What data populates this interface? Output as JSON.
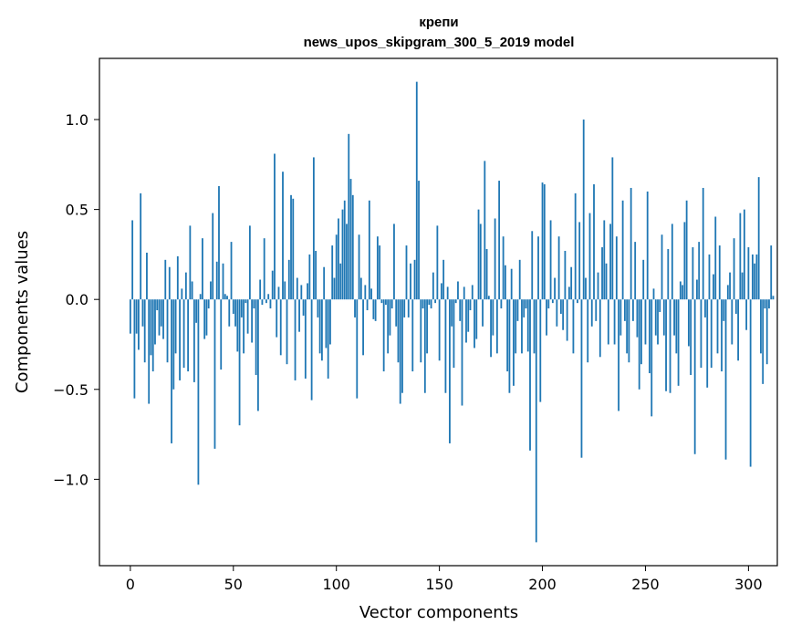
{
  "chart_data": {
    "type": "bar",
    "title": "крепи",
    "subtitle": "news_upos_skipgram_300_5_2019 model",
    "xlabel": "Vector components",
    "ylabel": "Components values",
    "xlim": [
      -15,
      314
    ],
    "ylim": [
      -1.48,
      1.34
    ],
    "xticks": [
      {
        "value": 0,
        "label": "0"
      },
      {
        "value": 50,
        "label": "50"
      },
      {
        "value": 100,
        "label": "100"
      },
      {
        "value": 150,
        "label": "150"
      },
      {
        "value": 200,
        "label": "200"
      },
      {
        "value": 250,
        "label": "250"
      },
      {
        "value": 300,
        "label": "300"
      }
    ],
    "yticks": [
      {
        "value": -1.0,
        "label": "−1.0"
      },
      {
        "value": -0.5,
        "label": "−0.5"
      },
      {
        "value": 0.0,
        "label": "0.0"
      },
      {
        "value": 0.5,
        "label": "0.5"
      },
      {
        "value": 1.0,
        "label": "1.0"
      }
    ],
    "bar_color": "#1f77b4",
    "values": [
      -0.19,
      0.44,
      -0.55,
      -0.19,
      -0.28,
      0.59,
      -0.15,
      -0.35,
      0.26,
      -0.58,
      -0.31,
      -0.4,
      -0.25,
      -0.06,
      -0.2,
      -0.15,
      -0.22,
      0.22,
      -0.35,
      0.18,
      -0.8,
      -0.5,
      -0.3,
      0.24,
      -0.45,
      0.06,
      -0.38,
      0.15,
      -0.4,
      0.41,
      0.1,
      -0.46,
      -0.13,
      -1.03,
      0.03,
      0.34,
      -0.22,
      -0.2,
      -0.05,
      0.1,
      0.48,
      -0.83,
      0.21,
      0.63,
      -0.39,
      0.2,
      0.03,
      0.02,
      -0.15,
      0.32,
      -0.08,
      -0.15,
      -0.29,
      -0.7,
      -0.1,
      -0.3,
      -0.02,
      -0.19,
      0.41,
      -0.24,
      -0.05,
      -0.42,
      -0.62,
      0.11,
      -0.03,
      0.34,
      -0.02,
      0.03,
      -0.05,
      0.16,
      0.81,
      -0.21,
      0.07,
      -0.31,
      0.71,
      0.1,
      -0.36,
      0.22,
      0.58,
      0.56,
      -0.45,
      0.12,
      -0.18,
      0.08,
      -0.09,
      -0.44,
      0.09,
      0.25,
      -0.56,
      0.79,
      0.27,
      -0.1,
      -0.3,
      -0.34,
      0.18,
      -0.27,
      -0.44,
      -0.25,
      0.3,
      0.12,
      0.36,
      0.45,
      0.2,
      0.5,
      0.55,
      0.42,
      0.92,
      0.67,
      0.58,
      -0.1,
      -0.55,
      0.36,
      0.12,
      -0.31,
      0.08,
      -0.06,
      0.55,
      0.06,
      -0.11,
      -0.12,
      0.35,
      0.3,
      -0.02,
      -0.4,
      -0.03,
      -0.3,
      -0.2,
      -0.05,
      0.42,
      -0.15,
      -0.35,
      -0.58,
      -0.52,
      -0.1,
      0.3,
      -0.1,
      0.2,
      -0.4,
      0.22,
      1.21,
      0.66,
      -0.35,
      -0.05,
      -0.52,
      -0.3,
      -0.03,
      -0.05,
      0.15,
      -0.02,
      0.41,
      -0.34,
      0.09,
      0.22,
      -0.52,
      0.07,
      -0.8,
      -0.15,
      -0.38,
      -0.02,
      0.1,
      -0.12,
      -0.59,
      0.07,
      -0.24,
      -0.18,
      -0.06,
      0.08,
      -0.27,
      -0.22,
      0.5,
      0.42,
      -0.15,
      0.77,
      0.28,
      0.02,
      -0.32,
      -0.2,
      0.45,
      -0.3,
      0.66,
      -0.05,
      0.35,
      0.19,
      -0.4,
      -0.52,
      0.17,
      -0.48,
      -0.3,
      -0.12,
      0.22,
      -0.3,
      -0.1,
      -0.05,
      -0.29,
      -0.84,
      0.38,
      -0.3,
      -1.35,
      0.35,
      -0.57,
      0.65,
      0.64,
      -0.2,
      -0.05,
      0.44,
      -0.02,
      0.12,
      -0.15,
      0.35,
      -0.08,
      -0.17,
      0.27,
      -0.23,
      0.07,
      0.18,
      -0.3,
      0.59,
      -0.02,
      0.43,
      -0.88,
      1.0,
      0.12,
      -0.35,
      0.48,
      -0.15,
      0.64,
      -0.12,
      0.15,
      -0.32,
      0.29,
      0.44,
      0.2,
      -0.25,
      0.42,
      0.79,
      -0.25,
      0.35,
      -0.62,
      -0.2,
      0.55,
      -0.12,
      -0.3,
      -0.35,
      0.62,
      -0.12,
      0.32,
      -0.21,
      -0.5,
      -0.36,
      0.22,
      -0.25,
      0.6,
      -0.41,
      -0.65,
      0.06,
      -0.2,
      -0.25,
      -0.07,
      0.36,
      -0.2,
      -0.51,
      0.28,
      -0.52,
      0.42,
      -0.2,
      -0.3,
      -0.48,
      0.1,
      0.08,
      0.43,
      0.55,
      -0.26,
      -0.42,
      0.29,
      -0.86,
      0.11,
      0.32,
      -0.38,
      0.62,
      -0.1,
      -0.49,
      0.25,
      -0.38,
      0.14,
      0.46,
      -0.3,
      0.3,
      -0.4,
      -0.12,
      -0.89,
      0.08,
      0.15,
      -0.25,
      0.34,
      -0.08,
      -0.34,
      0.48,
      0.15,
      0.5,
      -0.17,
      0.29,
      -0.93,
      0.25,
      0.2,
      0.25,
      0.68,
      -0.3,
      -0.47,
      -0.05,
      -0.36,
      -0.05,
      0.3,
      0.02
    ]
  }
}
